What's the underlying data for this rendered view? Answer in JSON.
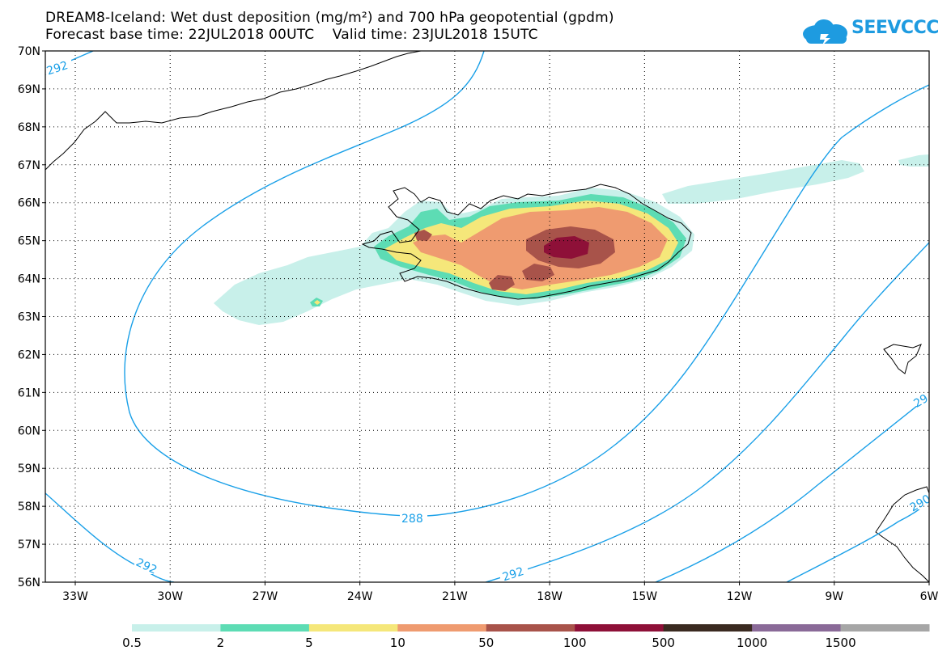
{
  "header": {
    "title": "DREAM8-Iceland: Wet dust deposition (mg/m²) and 700 hPa geopotential (gpdm)",
    "subtitle_base": "Forecast base time: 22JUL2018 00UTC",
    "subtitle_valid": "Valid time: 23JUL2018 15UTC",
    "logo_text": "SEEVCCC"
  },
  "map": {
    "lat_labels": [
      "70N",
      "69N",
      "68N",
      "67N",
      "66N",
      "65N",
      "64N",
      "63N",
      "62N",
      "61N",
      "60N",
      "59N",
      "58N",
      "57N",
      "56N"
    ],
    "lon_labels": [
      "33W",
      "30W",
      "27W",
      "24W",
      "21W",
      "18W",
      "15W",
      "12W",
      "9W",
      "6W"
    ],
    "contour_labels": [
      "292",
      "288",
      "292",
      "292",
      "29",
      "290"
    ]
  },
  "legend": {
    "labels": [
      "0.5",
      "2",
      "5",
      "10",
      "50",
      "100",
      "500",
      "1000",
      "1500"
    ],
    "colors": [
      "#c8f0ea",
      "#5ddcb4",
      "#f5e77a",
      "#ef9b70",
      "#a8534a",
      "#8e1038",
      "#3a2a20",
      "#8a6a98",
      "#a6a6a6"
    ]
  },
  "colors": {
    "contour": "#1aa0e8",
    "coast": "#000000",
    "grid": "#000000"
  }
}
